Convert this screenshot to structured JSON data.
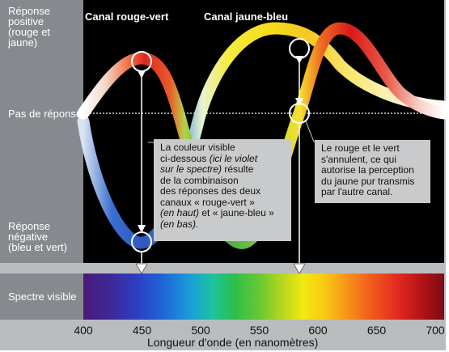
{
  "labels": {
    "positive": "Réponse positive (rouge et jaune)",
    "positive_l1": "Réponse",
    "positive_l2": "positive",
    "positive_l3": "(rouge et",
    "positive_l4": "jaune)",
    "none": "Pas de réponse",
    "negative_l1": "Réponse",
    "negative_l2": "négative",
    "negative_l3": "(bleu et vert)",
    "spectrum": "Spectre visible"
  },
  "curves": {
    "red_green": "Canal rouge-vert",
    "yellow_blue": "Canal jaune-bleu"
  },
  "notes": {
    "violet": {
      "l1": "La couleur visible",
      "l2a": "ci-dessous ",
      "l2b": "(ici le violet",
      "l3a": "sur le spectre)",
      "l3b": " résulte",
      "l4": "de la combinaison",
      "l5": "des réponses des deux",
      "l6": "canaux « rouge-vert »",
      "l7a": "(en haut)",
      "l7b": " et « jaune-bleu »",
      "l8": "(en bas)."
    },
    "yellow": {
      "l1": "Le rouge et le vert",
      "l2": "s'annulent, ce qui",
      "l3": "autorise la perception",
      "l4": "du jaune pur transmis",
      "l5": "par l'autre canal."
    }
  },
  "axis": {
    "title": "Longueur d'onde (en nanomètres)",
    "ticks": [
      "400",
      "450",
      "500",
      "550",
      "600",
      "650",
      "700"
    ]
  },
  "colors": {
    "plot_bg": "#000000",
    "panel": "#868a8e",
    "frame": "#b9bcbf",
    "note_bg": "#c9cacb"
  }
}
